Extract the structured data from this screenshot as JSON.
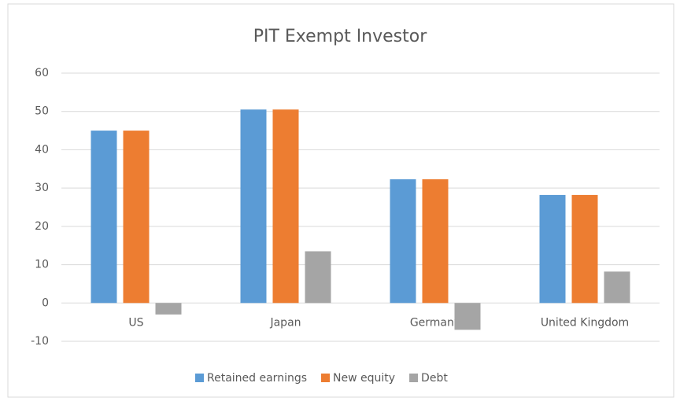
{
  "chart_data": {
    "type": "bar",
    "title": "PIT Exempt Investor",
    "categories": [
      "US",
      "Japan",
      "Germany",
      "United Kingdom"
    ],
    "series": [
      {
        "name": "Retained earnings",
        "color": "#5b9bd5",
        "values": [
          45,
          50.5,
          32.3,
          28.2
        ]
      },
      {
        "name": "New equity",
        "color": "#ed7d31",
        "values": [
          45,
          50.5,
          32.3,
          28.2
        ]
      },
      {
        "name": "Debt",
        "color": "#a5a5a5",
        "values": [
          -3,
          13.5,
          -7,
          8.2
        ]
      }
    ],
    "ylim": [
      -10,
      60
    ],
    "yticks": [
      -10,
      0,
      10,
      20,
      30,
      40,
      50,
      60
    ],
    "grid": true,
    "legend": "bottom"
  }
}
